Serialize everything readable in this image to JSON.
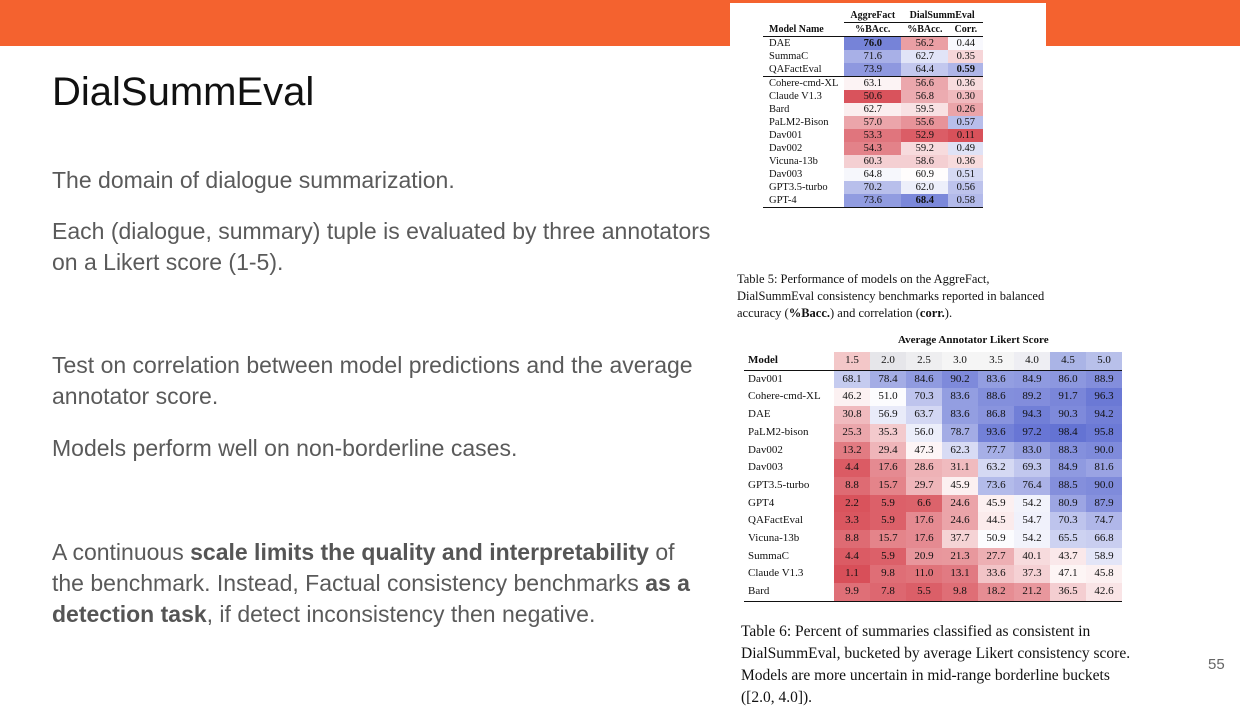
{
  "slide": {
    "title": "DialSummEval",
    "number": "55",
    "p1": "The domain of dialogue summarization.",
    "p2": "Each (dialogue, summary) tuple is evaluated by three annotators on a Likert score (1-5).",
    "p3": "Test on correlation between model predictions and the average annotator score.",
    "p4": "Models perform well on non-borderline cases.",
    "p5": {
      "t1": "A continuous ",
      "b1": "scale limits the quality and interpretability",
      "t2": " of the benchmark. Instead, Factual consistency benchmarks ",
      "b2": "as a detection task",
      "t3": ", if detect inconsistency then negative."
    },
    "accent_color": "#f4622f"
  },
  "table5": {
    "group_aggrefact": "AggreFact",
    "group_dialsumm": "DialSummEval",
    "col_model": "Model Name",
    "col_bacc1": "%BAcc.",
    "col_bacc2": "%BAcc.",
    "col_corr": "Corr.",
    "rows": [
      {
        "model": "DAE",
        "a": "76.0",
        "d": "56.2",
        "c": "0.44",
        "ab": true
      },
      {
        "model": "SummaC",
        "a": "71.6",
        "d": "62.7",
        "c": "0.35"
      },
      {
        "model": "QAFactEval",
        "a": "73.9",
        "d": "64.4",
        "c": "0.59",
        "cb": true
      },
      {
        "model": "Cohere-cmd-XL",
        "a": "63.1",
        "d": "56.6",
        "c": "0.36",
        "sep": true
      },
      {
        "model": "Claude V1.3",
        "a": "50.6",
        "d": "56.8",
        "c": "0.30"
      },
      {
        "model": "Bard",
        "a": "62.7",
        "d": "59.5",
        "c": "0.26"
      },
      {
        "model": "PaLM2-Bison",
        "a": "57.0",
        "d": "55.6",
        "c": "0.57"
      },
      {
        "model": "Dav001",
        "a": "53.3",
        "d": "52.9",
        "c": "0.11"
      },
      {
        "model": "Dav002",
        "a": "54.3",
        "d": "59.2",
        "c": "0.49"
      },
      {
        "model": "Vicuna-13b",
        "a": "60.3",
        "d": "58.6",
        "c": "0.36"
      },
      {
        "model": "Dav003",
        "a": "64.8",
        "d": "60.9",
        "c": "0.51"
      },
      {
        "model": "GPT3.5-turbo",
        "a": "70.2",
        "d": "62.0",
        "c": "0.56"
      },
      {
        "model": "GPT-4",
        "a": "73.6",
        "d": "68.4",
        "c": "0.58",
        "db": true
      }
    ],
    "caption": {
      "t1": "Table 5: Performance of models on the AggreFact, DialSummEval consistency benchmarks reported in balanced accuracy (",
      "b1": "%Bacc.",
      "t2": ") and correlation (",
      "b2": "corr.",
      "t3": ")."
    }
  },
  "table6": {
    "title": "Average Annotator Likert Score",
    "col_model": "Model",
    "buckets": [
      "1.5",
      "2.0",
      "2.5",
      "3.0",
      "3.5",
      "4.0",
      "4.5",
      "5.0"
    ],
    "rows": [
      {
        "model": "Dav001",
        "vals": [
          "68.1",
          "78.4",
          "84.6",
          "90.2",
          "83.6",
          "84.9",
          "86.0",
          "88.9"
        ]
      },
      {
        "model": "Cohere-cmd-XL",
        "vals": [
          "46.2",
          "51.0",
          "70.3",
          "83.6",
          "88.6",
          "89.2",
          "91.7",
          "96.3"
        ]
      },
      {
        "model": "DAE",
        "vals": [
          "30.8",
          "56.9",
          "63.7",
          "83.6",
          "86.8",
          "94.3",
          "90.3",
          "94.2"
        ]
      },
      {
        "model": "PaLM2-bison",
        "vals": [
          "25.3",
          "35.3",
          "56.0",
          "78.7",
          "93.6",
          "97.2",
          "98.4",
          "95.8"
        ]
      },
      {
        "model": "Dav002",
        "vals": [
          "13.2",
          "29.4",
          "47.3",
          "62.3",
          "77.7",
          "83.0",
          "88.3",
          "90.0"
        ]
      },
      {
        "model": "Dav003",
        "vals": [
          "4.4",
          "17.6",
          "28.6",
          "31.1",
          "63.2",
          "69.3",
          "84.9",
          "81.6"
        ]
      },
      {
        "model": "GPT3.5-turbo",
        "vals": [
          "8.8",
          "15.7",
          "29.7",
          "45.9",
          "73.6",
          "76.4",
          "88.5",
          "90.0"
        ]
      },
      {
        "model": "GPT4",
        "vals": [
          "2.2",
          "5.9",
          "6.6",
          "24.6",
          "45.9",
          "54.2",
          "80.9",
          "87.9"
        ]
      },
      {
        "model": "QAFactEval",
        "vals": [
          "3.3",
          "5.9",
          "17.6",
          "24.6",
          "44.5",
          "54.7",
          "70.3",
          "74.7"
        ]
      },
      {
        "model": "Vicuna-13b",
        "vals": [
          "8.8",
          "15.7",
          "17.6",
          "37.7",
          "50.9",
          "54.2",
          "65.5",
          "66.8"
        ]
      },
      {
        "model": "SummaC",
        "vals": [
          "4.4",
          "5.9",
          "20.9",
          "21.3",
          "27.7",
          "40.1",
          "43.7",
          "58.9"
        ]
      },
      {
        "model": "Claude V1.3",
        "vals": [
          "1.1",
          "9.8",
          "11.0",
          "13.1",
          "33.6",
          "37.3",
          "47.1",
          "45.8"
        ]
      },
      {
        "model": "Bard",
        "vals": [
          "9.9",
          "7.8",
          "5.5",
          "9.8",
          "18.2",
          "21.2",
          "36.5",
          "42.6"
        ]
      }
    ],
    "caption": "Table 6: Percent of summaries classified as consistent in DialSummEval, bucketed by average Likert consistency score. Models are more uncertain in mid-range borderline buckets ([2.0, 4.0])."
  }
}
